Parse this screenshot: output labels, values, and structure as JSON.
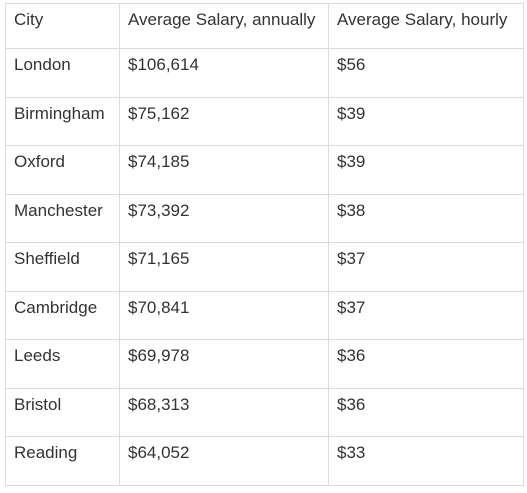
{
  "table": {
    "headers": [
      "City",
      "Average Salary, annually",
      "Average Salary, hourly"
    ],
    "rows": [
      [
        "London",
        "$106,614",
        "$56"
      ],
      [
        "Birmingham",
        "$75,162",
        "$39"
      ],
      [
        "Oxford",
        "$74,185",
        "$39"
      ],
      [
        "Manchester",
        "$73,392",
        "$38"
      ],
      [
        "Sheffield",
        "$71,165",
        "$37"
      ],
      [
        "Cambridge",
        "$70,841",
        "$37"
      ],
      [
        "Leeds",
        "$69,978",
        "$36"
      ],
      [
        "Bristol",
        "$68,313",
        "$36"
      ],
      [
        "Reading",
        "$64,052",
        "$33"
      ]
    ]
  }
}
